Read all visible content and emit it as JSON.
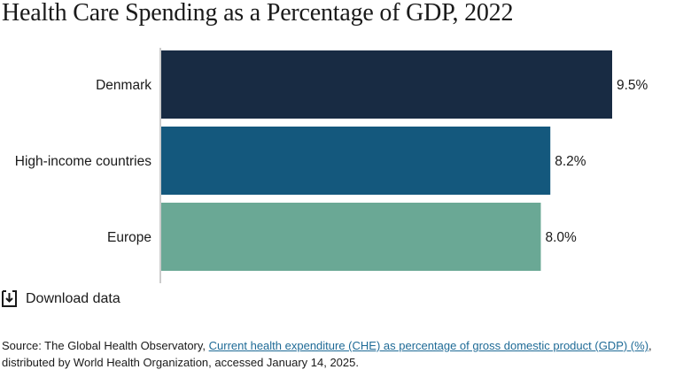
{
  "title": "Health Care Spending as a Percentage of GDP, 2022",
  "chart_data": {
    "type": "bar",
    "orientation": "horizontal",
    "categories": [
      "Denmark",
      "High-income countries",
      "Europe"
    ],
    "values": [
      9.5,
      8.2,
      8.0
    ],
    "value_labels": [
      "9.5%",
      "8.2%",
      "8.0%"
    ],
    "colors": [
      "#182b43",
      "#14587d",
      "#6aa895"
    ],
    "xlim": [
      0,
      9.5
    ],
    "grid": false,
    "title": "Health Care Spending as a Percentage of GDP, 2022",
    "xlabel": "",
    "ylabel": ""
  },
  "download": {
    "label": "Download data",
    "icon": "download-icon"
  },
  "source": {
    "prefix": "Source: The Global Health Observatory, ",
    "link_text": "Current health expenditure (CHE) as percentage of gross domestic product (GDP) (%)",
    "suffix": ", distributed by World Health Organization, accessed January 14, 2025."
  }
}
